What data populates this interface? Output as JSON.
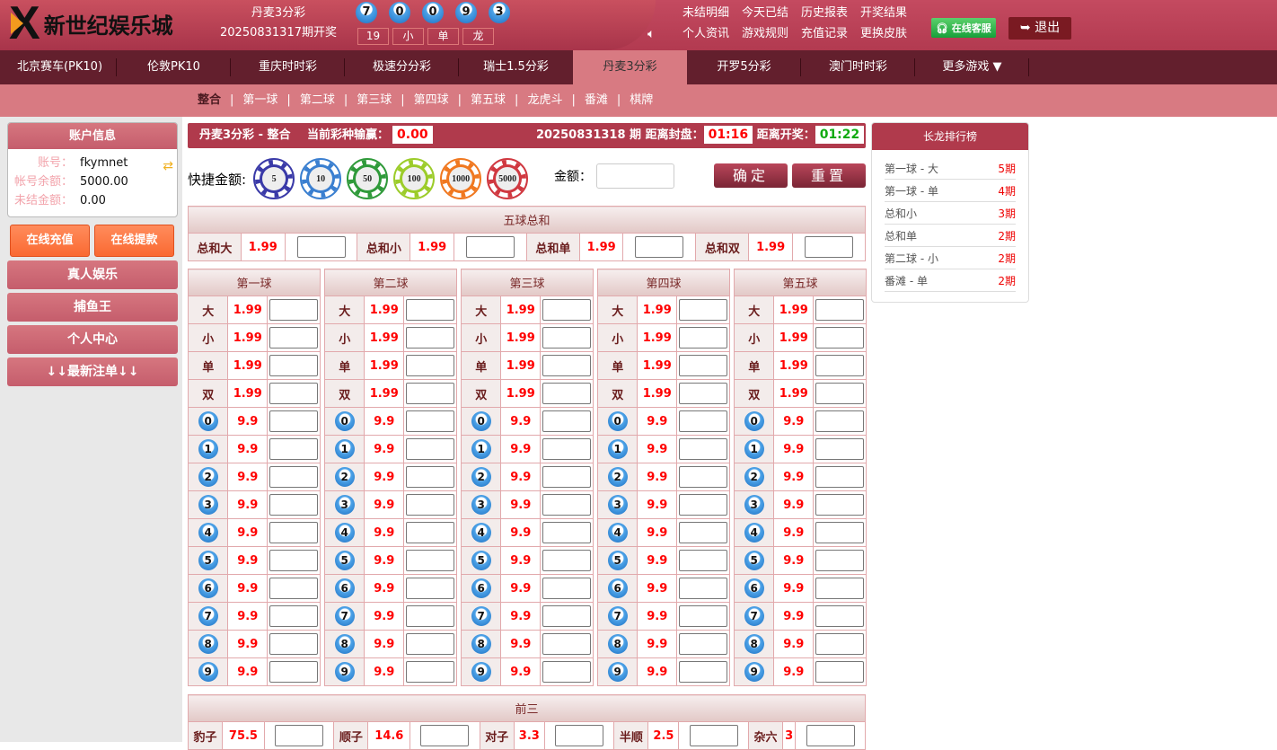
{
  "header": {
    "logo_text": "新世纪娱乐城",
    "lottery_name": "丹麦3分彩",
    "last_issue": "20250831317期开奖",
    "balls": [
      "7",
      "0",
      "0",
      "9",
      "3"
    ],
    "tags": [
      "19",
      "小",
      "单",
      "龙"
    ],
    "links": [
      "未结明细",
      "今天已结",
      "历史报表",
      "开奖结果",
      "个人资讯",
      "游戏规则",
      "充值记录",
      "更换皮肤"
    ],
    "service": "在线客服",
    "logout": "退出"
  },
  "nav": {
    "items": [
      "北京赛车(PK10)",
      "伦敦PK10",
      "重庆时时彩",
      "极速分分彩",
      "瑞士1.5分彩",
      "丹麦3分彩",
      "开罗5分彩",
      "澳门时时彩",
      "更多游戏 ▼"
    ],
    "active": 5
  },
  "subnav": {
    "items": [
      "整合",
      "第一球",
      "第二球",
      "第三球",
      "第四球",
      "第五球",
      "龙虎斗",
      "番滩",
      "棋牌"
    ],
    "active": 0
  },
  "account": {
    "title": "账户信息",
    "rows": [
      {
        "k": "账号：",
        "v": "fkymnet"
      },
      {
        "k": "帐号余额：",
        "v": "5000.00"
      },
      {
        "k": "未结金额：",
        "v": "0.00"
      }
    ],
    "deposit": "在线充值",
    "withdraw": "在线提款",
    "menu": [
      "真人娱乐",
      "捕鱼王",
      "个人中心",
      "↓↓最新注单↓↓"
    ]
  },
  "bar": {
    "title": "丹麦3分彩 - 整合",
    "pl_label": "当前彩种输赢：",
    "pl": "0.00",
    "issue": "20250831318 期",
    "close_label": "距离封盘：",
    "close": "01:16",
    "open_label": "距离开奖：",
    "open": "01:22"
  },
  "quick": {
    "label": "快捷金额:",
    "chips": [
      {
        "v": "5",
        "c": "#3a3aa8"
      },
      {
        "v": "10",
        "c": "#3a7fd0"
      },
      {
        "v": "50",
        "c": "#2f9a3a"
      },
      {
        "v": "100",
        "c": "#9ccc2a"
      },
      {
        "v": "1000",
        "c": "#f07820"
      },
      {
        "v": "5000",
        "c": "#d03840"
      }
    ],
    "amount_label": "金额：",
    "confirm": "确定",
    "reset": "重置"
  },
  "sum": {
    "title": "五球总和",
    "items": [
      {
        "k": "总和大",
        "o": "1.99"
      },
      {
        "k": "总和小",
        "o": "1.99"
      },
      {
        "k": "总和单",
        "o": "1.99"
      },
      {
        "k": "总和双",
        "o": "1.99"
      }
    ]
  },
  "balls": {
    "titles": [
      "第一球",
      "第二球",
      "第三球",
      "第四球",
      "第五球"
    ],
    "rows": [
      {
        "k": "大",
        "o": "1.99"
      },
      {
        "k": "小",
        "o": "1.99"
      },
      {
        "k": "单",
        "o": "1.99"
      },
      {
        "k": "双",
        "o": "1.99"
      },
      {
        "k": "0",
        "o": "9.9",
        "ball": true
      },
      {
        "k": "1",
        "o": "9.9",
        "ball": true
      },
      {
        "k": "2",
        "o": "9.9",
        "ball": true
      },
      {
        "k": "3",
        "o": "9.9",
        "ball": true
      },
      {
        "k": "4",
        "o": "9.9",
        "ball": true
      },
      {
        "k": "5",
        "o": "9.9",
        "ball": true
      },
      {
        "k": "6",
        "o": "9.9",
        "ball": true
      },
      {
        "k": "7",
        "o": "9.9",
        "ball": true
      },
      {
        "k": "8",
        "o": "9.9",
        "ball": true
      },
      {
        "k": "9",
        "o": "9.9",
        "ball": true
      }
    ]
  },
  "front3": {
    "title": "前三",
    "items": [
      {
        "k": "豹子",
        "o": "75.5"
      },
      {
        "k": "顺子",
        "o": "14.6"
      },
      {
        "k": "对子",
        "o": "3.3"
      },
      {
        "k": "半顺",
        "o": "2.5"
      },
      {
        "k": "杂六",
        "o": "3"
      }
    ]
  },
  "rank": {
    "title": "长龙排行榜",
    "items": [
      {
        "k": "第一球 - 大",
        "n": "5期"
      },
      {
        "k": "第一球 - 单",
        "n": "4期"
      },
      {
        "k": "总和小",
        "n": "3期"
      },
      {
        "k": "总和单",
        "n": "2期"
      },
      {
        "k": "第二球 - 小",
        "n": "2期"
      },
      {
        "k": "番滩 - 单",
        "n": "2期"
      }
    ]
  }
}
